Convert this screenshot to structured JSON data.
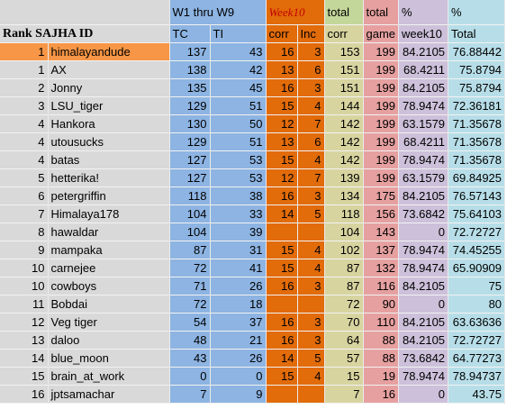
{
  "header": {
    "row1": [
      "W1 thru W9",
      "Week10",
      "total",
      "total",
      "%",
      "%"
    ],
    "row2": [
      "Rank SAJHA ID",
      "TC",
      "TI",
      "corr",
      "Inc",
      "corr",
      "game",
      "week10",
      "Total"
    ]
  },
  "rows": [
    [
      1,
      "himalayandude",
      137,
      43,
      16,
      3,
      153,
      199,
      84.2105,
      76.88442
    ],
    [
      1,
      "AX",
      138,
      42,
      13,
      6,
      151,
      199,
      68.4211,
      75.8794
    ],
    [
      2,
      "Jonny",
      135,
      45,
      16,
      3,
      151,
      199,
      84.2105,
      75.8794
    ],
    [
      3,
      "LSU_tiger",
      129,
      51,
      15,
      4,
      144,
      199,
      78.9474,
      72.36181
    ],
    [
      4,
      "Hankora",
      130,
      50,
      12,
      7,
      142,
      199,
      63.1579,
      71.35678
    ],
    [
      4,
      "utousucks",
      129,
      51,
      13,
      6,
      142,
      199,
      68.4211,
      71.35678
    ],
    [
      4,
      "batas",
      127,
      53,
      15,
      4,
      142,
      199,
      78.9474,
      71.35678
    ],
    [
      5,
      "hetterika!",
      127,
      53,
      12,
      7,
      139,
      199,
      63.1579,
      69.84925
    ],
    [
      6,
      "petergriffin",
      118,
      38,
      16,
      3,
      134,
      175,
      84.2105,
      76.57143
    ],
    [
      7,
      "Himalaya178",
      104,
      33,
      14,
      5,
      118,
      156,
      73.6842,
      75.64103
    ],
    [
      8,
      "hawaldar",
      104,
      39,
      null,
      null,
      104,
      143,
      0,
      72.72727
    ],
    [
      9,
      "mampaka",
      87,
      31,
      15,
      4,
      102,
      137,
      78.9474,
      74.45255
    ],
    [
      10,
      "carnejee",
      72,
      41,
      15,
      4,
      87,
      132,
      78.9474,
      65.90909
    ],
    [
      10,
      "cowboys",
      71,
      26,
      16,
      3,
      87,
      116,
      84.2105,
      75
    ],
    [
      11,
      "Bobdai",
      72,
      18,
      null,
      null,
      72,
      90,
      0,
      80
    ],
    [
      12,
      "Veg tiger",
      54,
      37,
      16,
      3,
      70,
      110,
      84.2105,
      63.63636
    ],
    [
      13,
      "daloo",
      48,
      21,
      16,
      3,
      64,
      88,
      84.2105,
      72.72727
    ],
    [
      14,
      "blue_moon",
      43,
      26,
      14,
      5,
      57,
      88,
      73.6842,
      64.77273
    ],
    [
      15,
      "brain_at_work",
      0,
      0,
      15,
      4,
      15,
      19,
      78.9474,
      78.94737
    ],
    [
      16,
      "jptsamachar",
      7,
      9,
      null,
      null,
      7,
      16,
      0,
      43.75
    ]
  ]
}
